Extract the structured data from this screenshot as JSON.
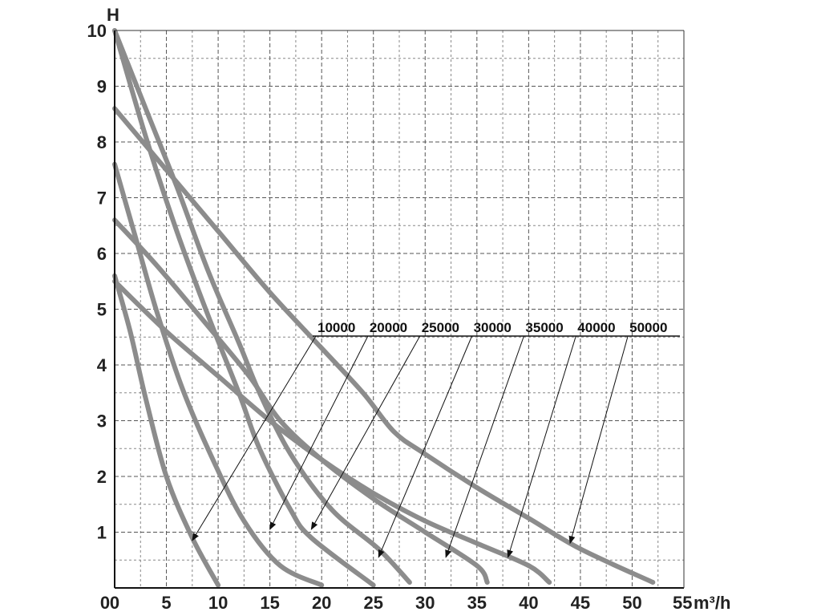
{
  "chart_data": {
    "type": "line",
    "title": "",
    "xlabel": "m³/h",
    "ylabel": "H",
    "xlim": [
      0,
      55
    ],
    "ylim": [
      0,
      10
    ],
    "x_ticks": [
      0,
      5,
      10,
      15,
      20,
      25,
      30,
      35,
      40,
      45,
      50,
      55
    ],
    "y_ticks": [
      1,
      2,
      3,
      4,
      5,
      6,
      7,
      8,
      9,
      10
    ],
    "grid": true,
    "curve_color": "#8c8c8c",
    "series": [
      {
        "name": "10000",
        "points": [
          [
            0,
            5.6
          ],
          [
            1.5,
            4.6
          ],
          [
            3,
            3.4
          ],
          [
            5,
            2.0
          ],
          [
            7.5,
            0.9
          ],
          [
            10,
            0.05
          ]
        ],
        "arrow_to": [
          7.5,
          0.85
        ]
      },
      {
        "name": "20000",
        "points": [
          [
            0,
            7.6
          ],
          [
            2,
            6.3
          ],
          [
            4,
            5.0
          ],
          [
            6.5,
            3.6
          ],
          [
            9.5,
            2.3
          ],
          [
            12.5,
            1.2
          ],
          [
            16,
            0.4
          ],
          [
            20,
            0.05
          ]
        ],
        "arrow_to": [
          15,
          1.05
        ]
      },
      {
        "name": "25000",
        "points": [
          [
            0,
            10.0
          ],
          [
            3,
            8.1
          ],
          [
            6,
            6.4
          ],
          [
            9,
            4.9
          ],
          [
            12,
            3.5
          ],
          [
            14,
            2.5
          ],
          [
            17,
            1.4
          ],
          [
            19,
            0.9
          ],
          [
            25,
            0.05
          ]
        ],
        "arrow_to": [
          19,
          1.05
        ]
      },
      {
        "name": "30000",
        "points": [
          [
            0,
            10.0
          ],
          [
            3,
            8.6
          ],
          [
            6,
            7.2
          ],
          [
            9,
            5.7
          ],
          [
            12,
            4.4
          ],
          [
            14,
            3.5
          ],
          [
            17,
            2.4
          ],
          [
            21,
            1.4
          ],
          [
            25.5,
            0.7
          ],
          [
            28.5,
            0.1
          ]
        ],
        "arrow_to": [
          25.5,
          0.55
        ]
      },
      {
        "name": "35000",
        "points": [
          [
            0,
            6.6
          ],
          [
            4,
            5.8
          ],
          [
            9,
            4.7
          ],
          [
            13,
            3.8
          ],
          [
            16,
            3.0
          ],
          [
            20,
            2.3
          ],
          [
            25,
            1.6
          ],
          [
            30,
            1.0
          ],
          [
            35,
            0.4
          ],
          [
            36,
            0.1
          ]
        ],
        "arrow_to": [
          32,
          0.55
        ]
      },
      {
        "name": "40000",
        "points": [
          [
            0,
            5.5
          ],
          [
            5,
            4.6
          ],
          [
            10,
            3.8
          ],
          [
            15,
            3.0
          ],
          [
            20,
            2.3
          ],
          [
            25,
            1.7
          ],
          [
            30,
            1.2
          ],
          [
            35,
            0.8
          ],
          [
            40,
            0.4
          ],
          [
            42,
            0.1
          ]
        ],
        "arrow_to": [
          38,
          0.55
        ]
      },
      {
        "name": "50000",
        "points": [
          [
            0,
            8.6
          ],
          [
            5,
            7.5
          ],
          [
            10,
            6.4
          ],
          [
            15,
            5.3
          ],
          [
            20,
            4.3
          ],
          [
            24,
            3.5
          ],
          [
            27,
            2.8
          ],
          [
            30,
            2.4
          ],
          [
            35,
            1.8
          ],
          [
            40,
            1.25
          ],
          [
            45,
            0.7
          ],
          [
            52,
            0.1
          ]
        ],
        "arrow_to": [
          44,
          0.8
        ]
      }
    ]
  }
}
